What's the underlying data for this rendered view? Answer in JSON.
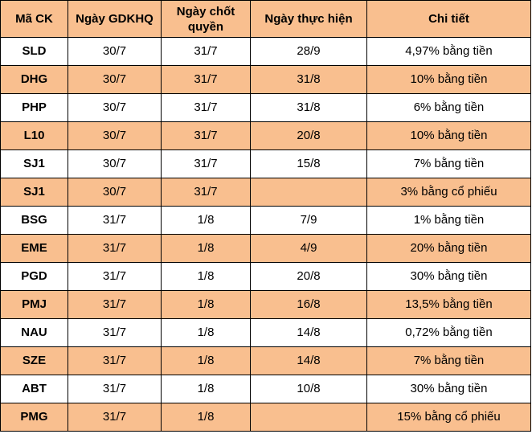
{
  "headers": {
    "code": "Mã CK",
    "ex_date": "Ngày GDKHQ",
    "record_date": "Ngày chốt quyền",
    "pay_date": "Ngày thực hiện",
    "detail": "Chi tiết"
  },
  "rows": [
    {
      "code": "SLD",
      "ex_date": "30/7",
      "record_date": "31/7",
      "pay_date": "28/9",
      "detail": "4,97% bằng tiền"
    },
    {
      "code": "DHG",
      "ex_date": "30/7",
      "record_date": "31/7",
      "pay_date": "31/8",
      "detail": "10% bằng tiền"
    },
    {
      "code": "PHP",
      "ex_date": "30/7",
      "record_date": "31/7",
      "pay_date": "31/8",
      "detail": "6% bằng tiền"
    },
    {
      "code": "L10",
      "ex_date": "30/7",
      "record_date": "31/7",
      "pay_date": "20/8",
      "detail": "10% bằng tiền"
    },
    {
      "code": "SJ1",
      "ex_date": "30/7",
      "record_date": "31/7",
      "pay_date": "15/8",
      "detail": "7% bằng tiền"
    },
    {
      "code": "SJ1",
      "ex_date": "30/7",
      "record_date": "31/7",
      "pay_date": "",
      "detail": "3% bằng cổ phiếu"
    },
    {
      "code": "BSG",
      "ex_date": "31/7",
      "record_date": "1/8",
      "pay_date": "7/9",
      "detail": "1% bằng tiền"
    },
    {
      "code": "EME",
      "ex_date": "31/7",
      "record_date": "1/8",
      "pay_date": "4/9",
      "detail": "20% bằng tiền"
    },
    {
      "code": "PGD",
      "ex_date": "31/7",
      "record_date": "1/8",
      "pay_date": "20/8",
      "detail": "30% bằng tiền"
    },
    {
      "code": "PMJ",
      "ex_date": "31/7",
      "record_date": "1/8",
      "pay_date": "16/8",
      "detail": "13,5% bằng tiền"
    },
    {
      "code": "NAU",
      "ex_date": "31/7",
      "record_date": "1/8",
      "pay_date": "14/8",
      "detail": "0,72% bằng tiền"
    },
    {
      "code": "SZE",
      "ex_date": "31/7",
      "record_date": "1/8",
      "pay_date": "14/8",
      "detail": "7% bằng tiền"
    },
    {
      "code": "ABT",
      "ex_date": "31/7",
      "record_date": "1/8",
      "pay_date": "10/8",
      "detail": "30% bằng tiền"
    },
    {
      "code": "PMG",
      "ex_date": "31/7",
      "record_date": "1/8",
      "pay_date": "",
      "detail": "15% bằng cổ phiếu"
    }
  ],
  "colors": {
    "band": "#f9bf8f",
    "plain": "#ffffff",
    "border": "#000000"
  }
}
